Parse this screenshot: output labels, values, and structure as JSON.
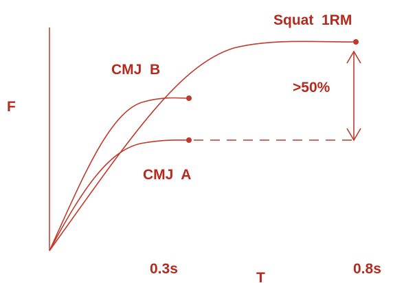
{
  "colors": {
    "curve": "#c0392b",
    "text": "#b52a1e",
    "background": "#ffffff"
  },
  "labels": {
    "y_axis": "F",
    "x_axis": "T",
    "squat": "Squat  1RM",
    "cmj_b": "CMJ  B",
    "cmj_a": "CMJ  A",
    "difference": ">50%",
    "tick_mid": "0.3s",
    "tick_end": "0.8s"
  },
  "curves": [
    {
      "name": "Squat 1RM",
      "end_marker": true
    },
    {
      "name": "CMJ B",
      "end_marker": true
    },
    {
      "name": "CMJ A",
      "end_marker": true,
      "extension": "dashed"
    }
  ]
}
